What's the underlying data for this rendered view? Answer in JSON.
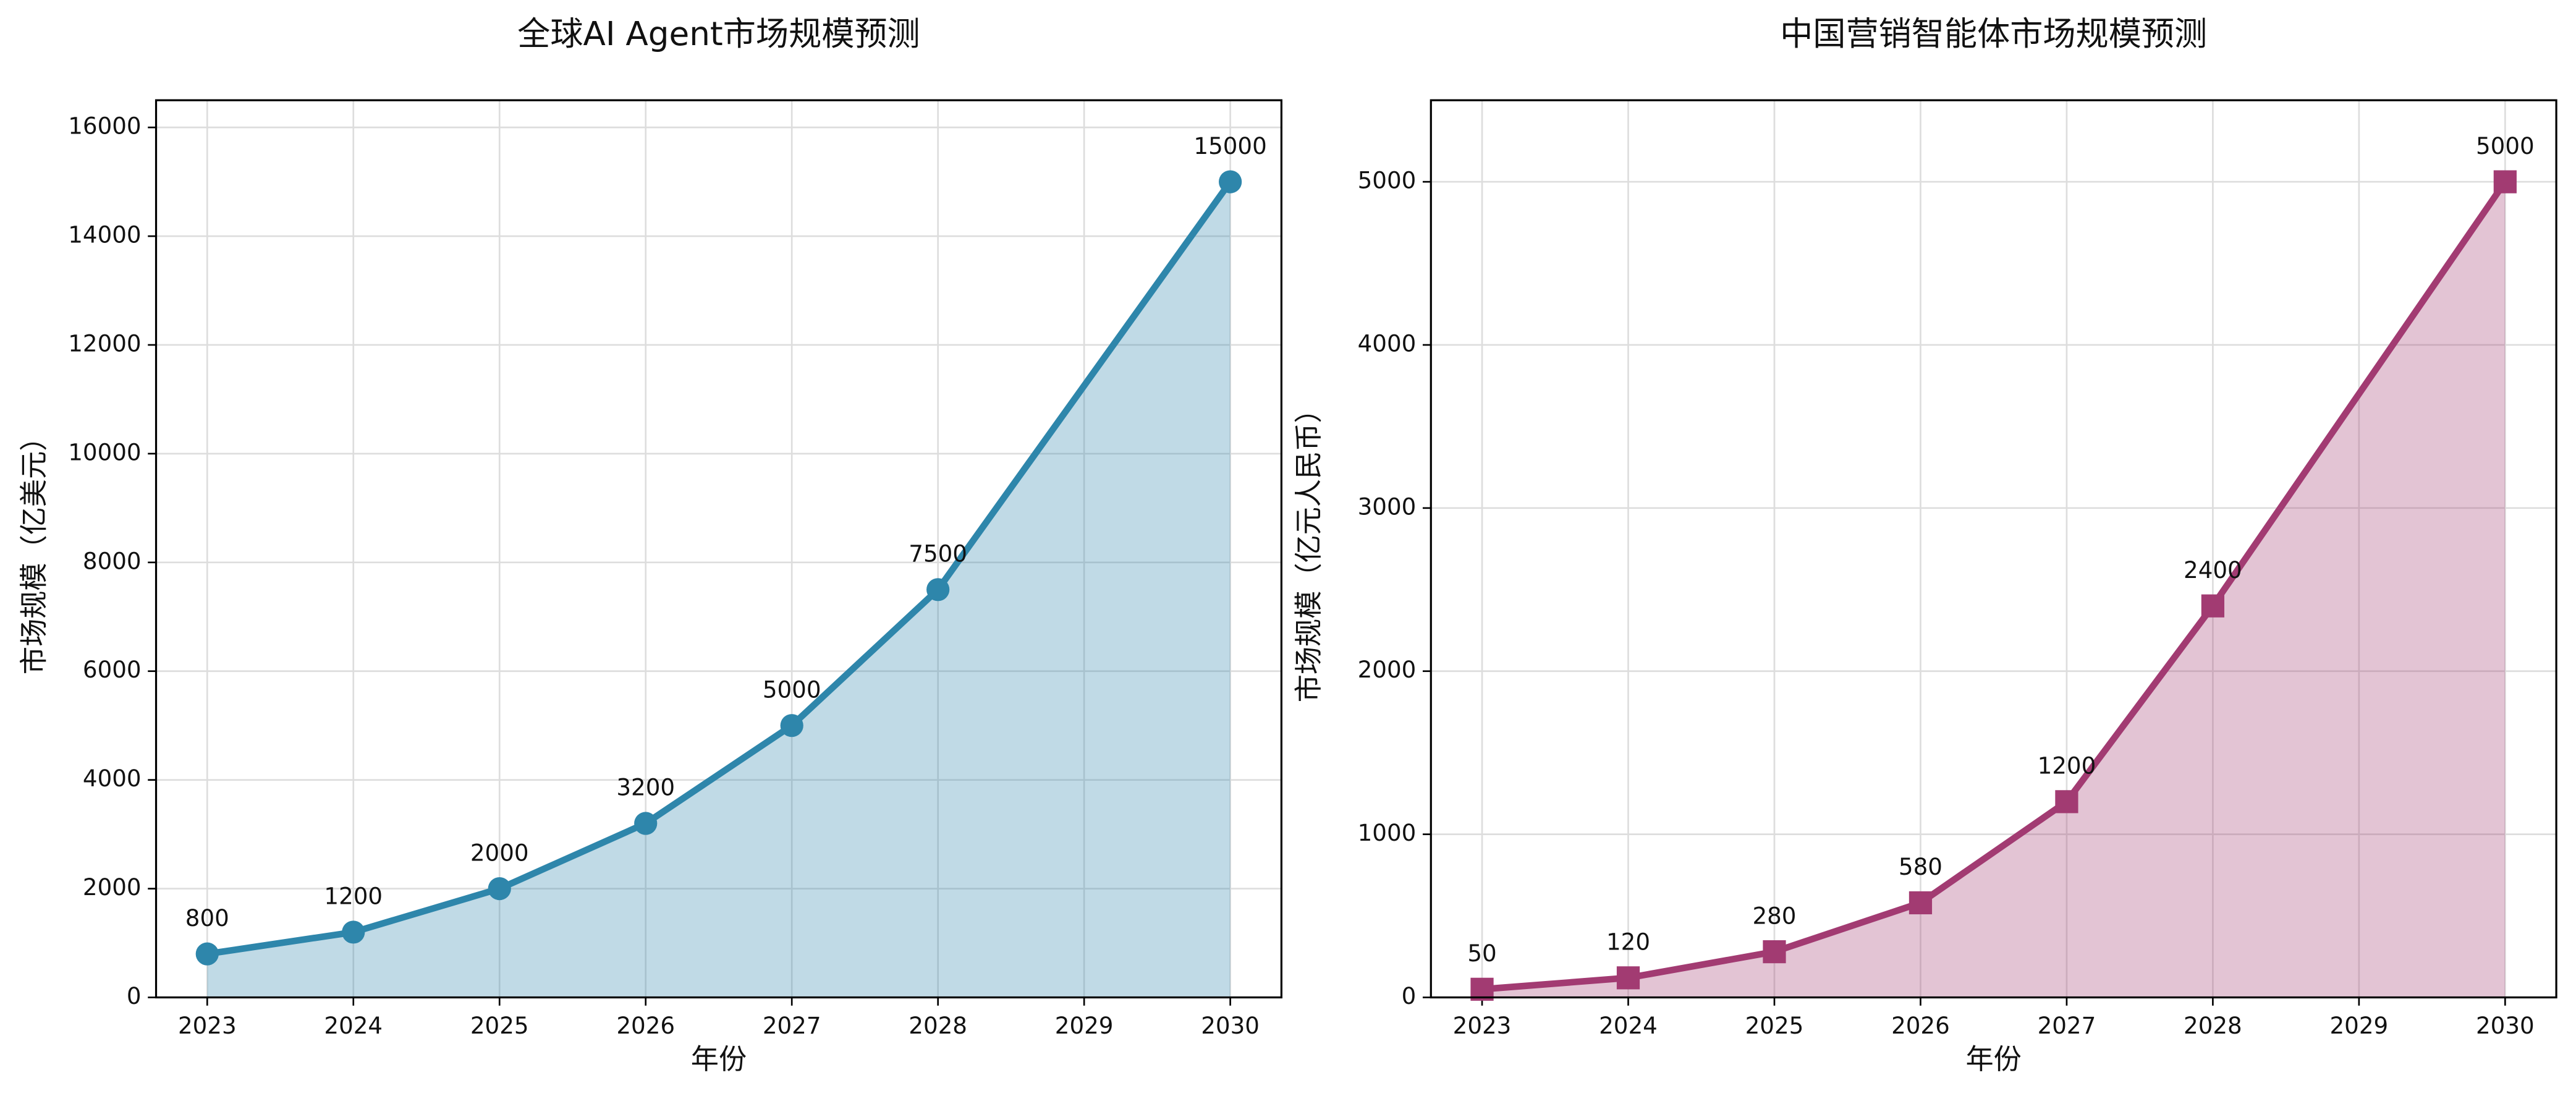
{
  "chart_data": [
    {
      "type": "line",
      "title": "全球AI Agent市场规模预测",
      "x_label": "年份",
      "y_label": "市场规模（亿美元）",
      "x": [
        2023,
        2024,
        2025,
        2026,
        2027,
        2028,
        2030
      ],
      "values": [
        800,
        1200,
        2000,
        3200,
        5000,
        7500,
        15000
      ],
      "color": "#2e86ab",
      "marker": "circle",
      "fill": true,
      "xlim": [
        2022.65,
        2030.35
      ],
      "ylim": [
        0,
        16500
      ],
      "xticks": [
        2023,
        2024,
        2025,
        2026,
        2027,
        2028,
        2029,
        2030
      ],
      "yticks": [
        0,
        2000,
        4000,
        6000,
        8000,
        10000,
        12000,
        14000,
        16000
      ],
      "grid": true
    },
    {
      "type": "line",
      "title": "中国营销智能体市场规模预测",
      "x_label": "年份",
      "y_label": "市场规模（亿元人民币）",
      "x": [
        2023,
        2024,
        2025,
        2026,
        2027,
        2028,
        2030
      ],
      "values": [
        50,
        120,
        280,
        580,
        1200,
        2400,
        5000
      ],
      "color": "#a23b72",
      "marker": "square",
      "fill": true,
      "xlim": [
        2022.65,
        2030.35
      ],
      "ylim": [
        0,
        5500
      ],
      "xticks": [
        2023,
        2024,
        2025,
        2026,
        2027,
        2028,
        2029,
        2030
      ],
      "yticks": [
        0,
        1000,
        2000,
        3000,
        4000,
        5000
      ],
      "grid": true
    }
  ]
}
